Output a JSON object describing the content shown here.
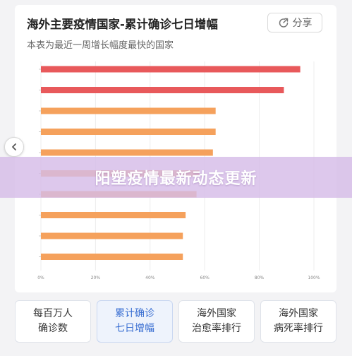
{
  "card": {
    "title": "海外主要疫情国家-累计确诊七日增幅",
    "subtitle": "本表为最近一周增长幅度最快的国家",
    "share_label": "分享"
  },
  "banner": {
    "text": "阳塑疫情最新动态更新"
  },
  "tabs": [
    {
      "line1": "每百万人",
      "line2": "确诊数",
      "active": false
    },
    {
      "line1": "累计确诊",
      "line2": "七日增幅",
      "active": true
    },
    {
      "line1": "海外国家",
      "line2": "治愈率排行",
      "active": false
    },
    {
      "line1": "海外国家",
      "line2": "病死率排行",
      "active": false
    }
  ],
  "colors": {
    "top_bar": "#e8595b",
    "other_bar": "#f5a15c",
    "active_tab_text": "#3a6fd2"
  },
  "chart_data": {
    "type": "bar",
    "orientation": "horizontal",
    "categories": [
      "",
      "",
      "",
      "",
      "",
      "",
      "",
      "",
      "",
      ""
    ],
    "values": [
      95,
      89,
      64,
      64,
      63,
      58,
      57,
      53,
      52,
      52
    ],
    "xlim": [
      0,
      100
    ],
    "x_ticks": [
      "0%",
      "20%",
      "40%",
      "60%",
      "80%",
      "100%"
    ],
    "grid": true
  }
}
